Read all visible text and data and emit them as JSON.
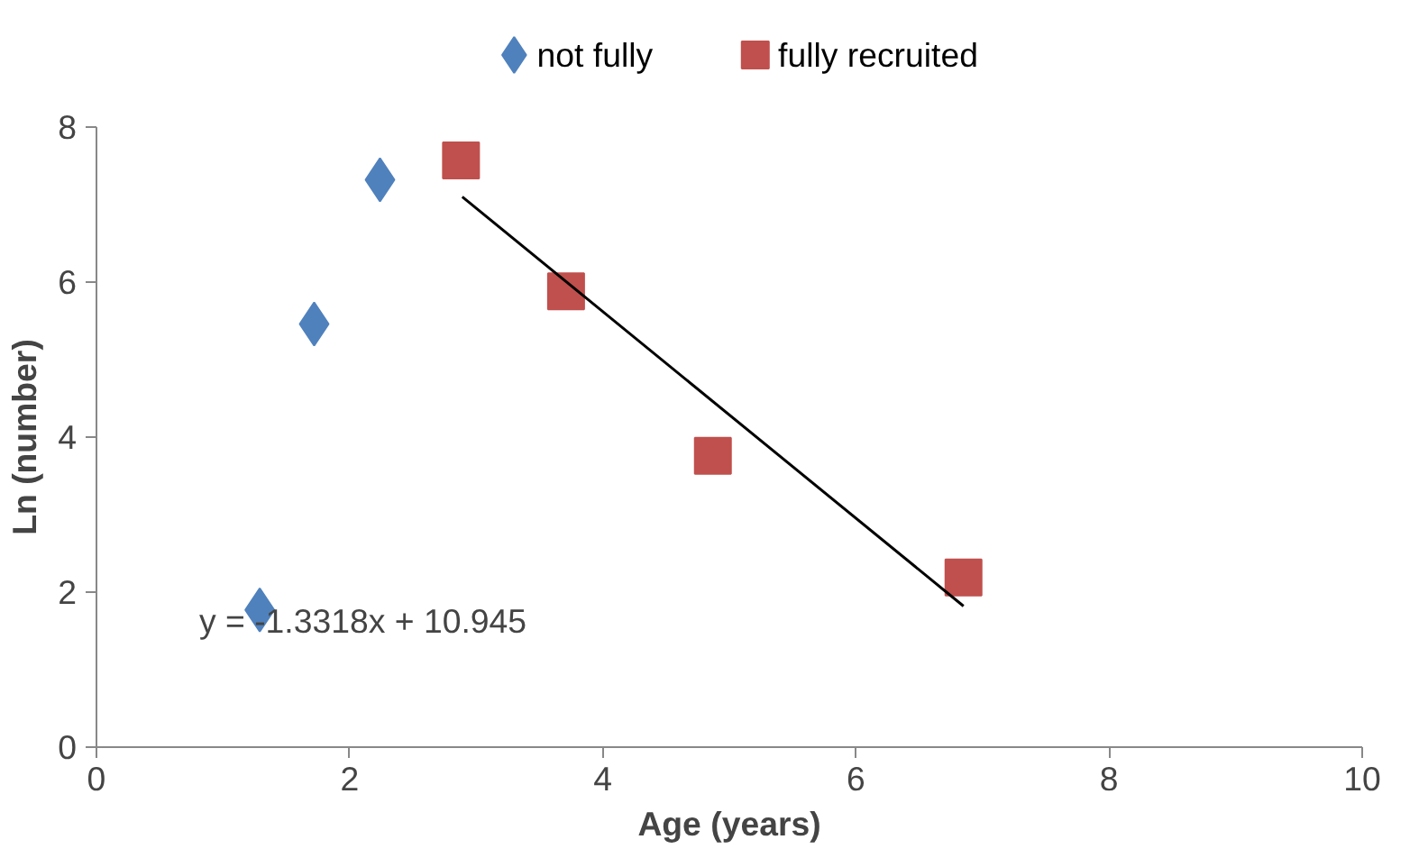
{
  "chart_data": {
    "type": "scatter",
    "xlabel": "Age (years)",
    "ylabel": "Ln (number)",
    "series": [
      {
        "name": "not fully",
        "color": "#4f81bd",
        "marker": "diamond",
        "x": [
          1.29,
          1.72,
          2.24
        ],
        "values": [
          1.77,
          5.46,
          7.32
        ]
      },
      {
        "name": "fully recruited",
        "color": "#c0504d",
        "marker": "square",
        "x": [
          2.88,
          3.71,
          4.87,
          6.85
        ],
        "values": [
          7.57,
          5.88,
          3.76,
          2.19
        ]
      },
      {
        "type": "line",
        "color": "#000000",
        "x": [
          2.89,
          6.85
        ],
        "values": [
          7.1,
          1.82
        ]
      }
    ],
    "annotations": [
      "y = -1.3318x + 10.945"
    ],
    "xlim": [
      0,
      10
    ],
    "ylim": [
      0,
      8
    ],
    "xticks": [
      0,
      2,
      4,
      6,
      8,
      10
    ],
    "yticks": [
      0,
      2,
      4,
      6,
      8
    ],
    "grid": false,
    "legend": "top"
  }
}
